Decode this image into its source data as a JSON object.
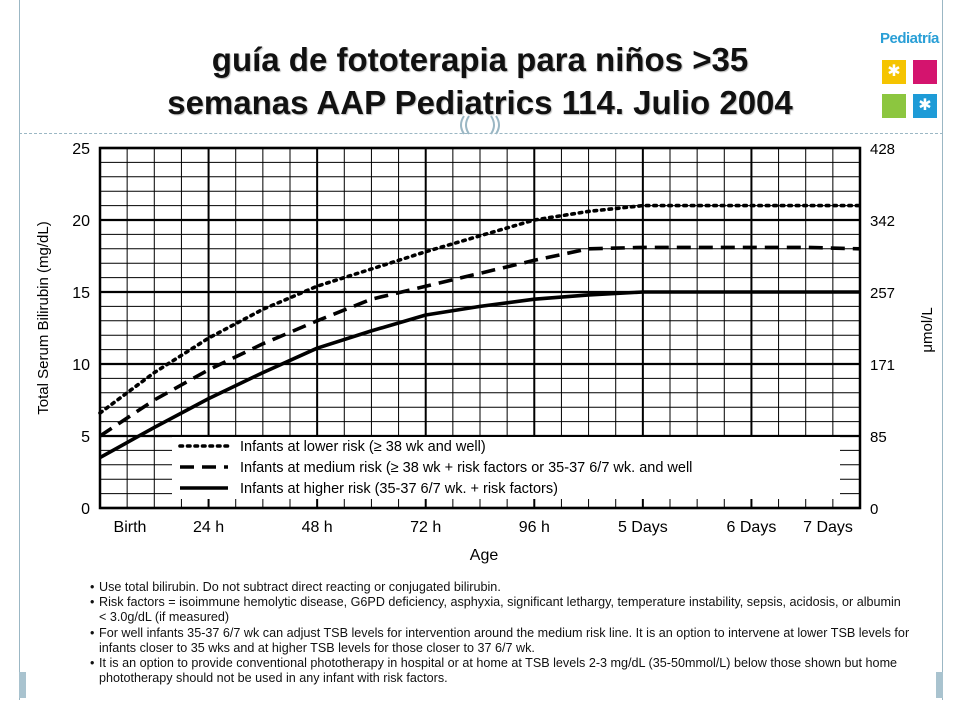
{
  "slide": {
    "title_line1": "guía de fototerapia para niños >35",
    "title_line2": "semanas AAP Pediatrics 114. Julio 2004",
    "logo_text": "Pediatría"
  },
  "colors": {
    "frame": "#9bb7c4",
    "logo_text": "#2a9fd6",
    "logo_tiles": [
      "#f5c400",
      "#d4146e",
      "#8cc63f",
      "#1e9bd7"
    ]
  },
  "chart_data": {
    "type": "line",
    "xlabel": "Age",
    "ylabel": "Total Serum Bilirubin (mg/dL)",
    "y2label": "μmol/L",
    "x_ticks": [
      "Birth",
      "24 h",
      "48 h",
      "72 h",
      "96 h",
      "5 Days",
      "6 Days",
      "7 Days"
    ],
    "x_tick_hours": [
      0,
      24,
      48,
      72,
      96,
      120,
      144,
      168
    ],
    "y_ticks": [
      0,
      5,
      10,
      15,
      20,
      25
    ],
    "y2_ticks": [
      "0",
      "85",
      "171",
      "257",
      "342",
      "428"
    ],
    "ylim": [
      0,
      25
    ],
    "xlim_hours": [
      0,
      168
    ],
    "grid": true,
    "series": [
      {
        "name": "Infants at lower risk (≥ 38 wk and well)",
        "style": "dotted",
        "x": [
          0,
          6,
          12,
          18,
          24,
          30,
          36,
          42,
          48,
          60,
          72,
          84,
          96,
          108,
          120,
          132,
          144,
          156,
          168
        ],
        "y": [
          6.6,
          8.0,
          9.4,
          10.6,
          11.8,
          12.8,
          13.8,
          14.6,
          15.4,
          16.6,
          17.8,
          18.9,
          20.0,
          20.6,
          21.0,
          21.0,
          21.0,
          21.0,
          21.0
        ]
      },
      {
        "name": "Infants at medium risk (≥ 38 wk + risk factors or 35-37 6/7 wk. and well",
        "style": "dashed",
        "x": [
          0,
          12,
          24,
          36,
          48,
          60,
          72,
          84,
          96,
          108,
          120,
          132,
          144,
          156,
          168
        ],
        "y": [
          5.0,
          7.5,
          9.6,
          11.4,
          13.0,
          14.5,
          15.4,
          16.3,
          17.2,
          18.0,
          18.1,
          18.1,
          18.1,
          18.1,
          18.0
        ]
      },
      {
        "name": "Infants at higher risk (35-37 6/7 wk. + risk factors)",
        "style": "solid",
        "x": [
          0,
          12,
          24,
          36,
          48,
          60,
          72,
          84,
          96,
          108,
          120,
          132,
          144,
          156,
          168
        ],
        "y": [
          3.5,
          5.6,
          7.6,
          9.4,
          11.1,
          12.3,
          13.4,
          14.0,
          14.5,
          14.8,
          15.0,
          15.0,
          15.0,
          15.0,
          15.0
        ]
      }
    ]
  },
  "notes": [
    "Use total bilirubin. Do not subtract direct reacting or conjugated bilirubin.",
    "Risk factors = isoimmune hemolytic disease, G6PD deficiency, asphyxia, significant lethargy, temperature instability, sepsis, acidosis, or albumin < 3.0g/dL (if measured)",
    "For well infants 35-37 6/7 wk can adjust TSB levels for intervention around the medium risk line. It is an option to intervene at lower TSB levels for infants closer to 35 wks and at higher TSB levels for those closer to 37 6/7 wk.",
    "It is an option to provide conventional phototherapy in hospital or at home at TSB levels 2-3 mg/dL (35-50mmol/L) below those shown but home phototherapy should not be used in any infant with risk factors."
  ]
}
